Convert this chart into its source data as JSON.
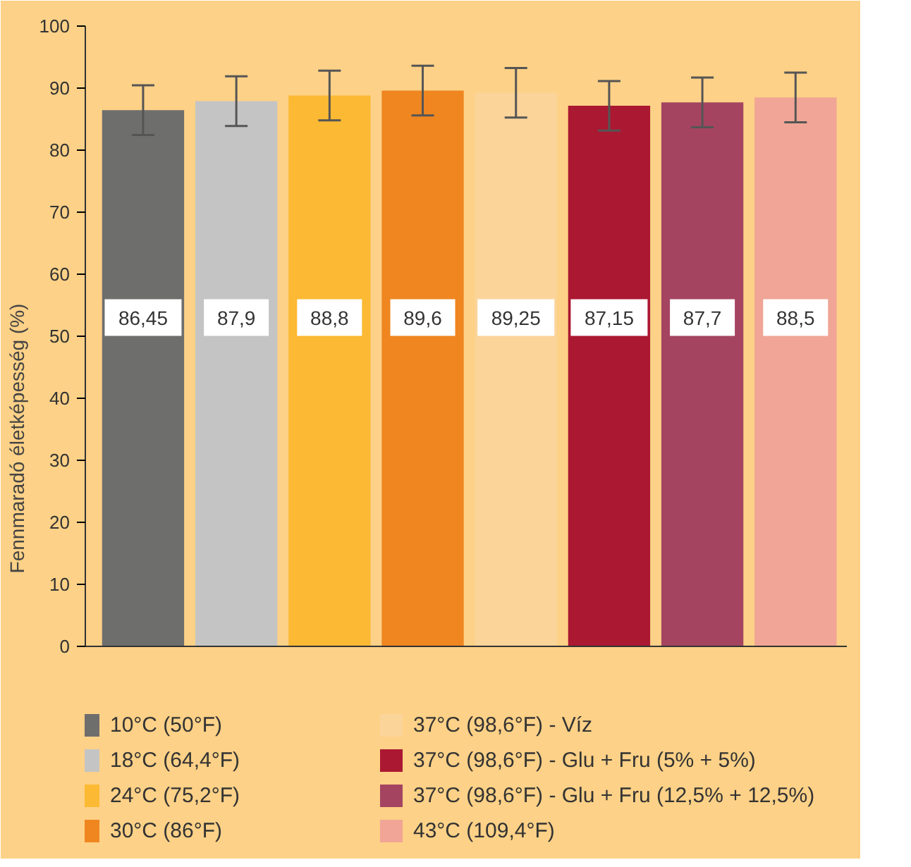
{
  "chart_data": {
    "type": "bar",
    "ylabel": "Fennmaradó életképesség (%)",
    "categories": [
      null,
      null,
      null,
      null,
      null,
      null,
      null,
      null
    ],
    "series": [
      {
        "name": "10°C (50°F)",
        "color": "#6e6e6d",
        "values": [
          86.45,
          null,
          null,
          null,
          null,
          null,
          null,
          null
        ],
        "errors": [
          4,
          null,
          null,
          null,
          null,
          null,
          null,
          null
        ],
        "value_labels": [
          "86,45",
          null,
          null,
          null,
          null,
          null,
          null,
          null
        ]
      },
      {
        "name": "18°C (64,4°F)",
        "color": "#c4c4c4",
        "values": [
          null,
          87.9,
          null,
          null,
          null,
          null,
          null,
          null
        ],
        "errors": [
          null,
          4,
          null,
          null,
          null,
          null,
          null,
          null
        ],
        "value_labels": [
          null,
          "87,9",
          null,
          null,
          null,
          null,
          null,
          null
        ]
      },
      {
        "name": "24°C (75,2°F)",
        "color": "#fcb933",
        "values": [
          null,
          null,
          88.8,
          null,
          null,
          null,
          null,
          null
        ],
        "errors": [
          null,
          null,
          4,
          null,
          null,
          null,
          null,
          null
        ],
        "value_labels": [
          null,
          null,
          "88,8",
          null,
          null,
          null,
          null,
          null
        ]
      },
      {
        "name": "30°C (86°F)",
        "color": "#ef8620",
        "values": [
          null,
          null,
          null,
          89.6,
          null,
          null,
          null,
          null
        ],
        "errors": [
          null,
          null,
          null,
          4,
          null,
          null,
          null,
          null
        ],
        "value_labels": [
          null,
          null,
          null,
          "89,6",
          null,
          null,
          null,
          null
        ]
      },
      {
        "name": "37°C (98,6°F) - Víz",
        "color": "#fbd49a",
        "values": [
          null,
          null,
          null,
          null,
          89.25,
          null,
          null,
          null
        ],
        "errors": [
          null,
          null,
          null,
          null,
          4,
          null,
          null,
          null
        ],
        "value_labels": [
          null,
          null,
          null,
          null,
          "89,25",
          null,
          null,
          null
        ]
      },
      {
        "name": "37°C (98,6°F) - Glu + Fru (5% + 5%)",
        "color": "#ab1832",
        "values": [
          null,
          null,
          null,
          null,
          null,
          87.15,
          null,
          null
        ],
        "errors": [
          null,
          null,
          null,
          null,
          null,
          4,
          null,
          null
        ],
        "value_labels": [
          null,
          null,
          null,
          null,
          null,
          "87,15",
          null,
          null
        ]
      },
      {
        "name": "37°C (98,6°F) - Glu + Fru (12,5% + 12,5%)",
        "color": "#a54461",
        "values": [
          null,
          null,
          null,
          null,
          null,
          null,
          87.7,
          null
        ],
        "errors": [
          null,
          null,
          null,
          null,
          null,
          null,
          4,
          null
        ],
        "value_labels": [
          null,
          null,
          null,
          null,
          null,
          null,
          "87,7",
          null
        ]
      },
      {
        "name": "43°C (109,4°F)",
        "color": "#f0a596",
        "values": [
          null,
          null,
          null,
          null,
          null,
          null,
          null,
          88.5
        ],
        "errors": [
          null,
          null,
          null,
          null,
          null,
          null,
          null,
          4
        ],
        "value_labels": [
          null,
          null,
          null,
          null,
          null,
          null,
          null,
          "88,5"
        ]
      }
    ],
    "ylim": [
      0,
      100
    ],
    "yticks": [
      0,
      10,
      20,
      30,
      40,
      50,
      60,
      70,
      80,
      90,
      100
    ],
    "grid": false,
    "legend": "bottom"
  }
}
